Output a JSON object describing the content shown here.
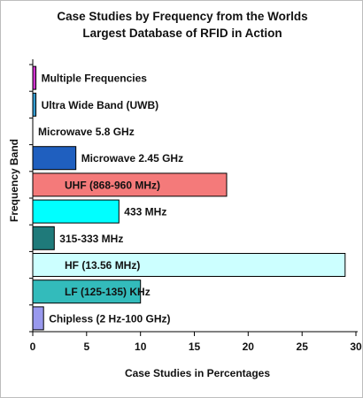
{
  "chart_data": {
    "type": "bar",
    "orientation": "horizontal",
    "title_line1": "Case Studies by Frequency from the Worlds",
    "title_line2": "Largest Database of RFID in Action",
    "xlabel": "Case Studies in Percentages",
    "ylabel": "Frequency Band",
    "xlim": [
      0,
      30
    ],
    "xticks": [
      0,
      5,
      10,
      15,
      20,
      25,
      30
    ],
    "grid": false,
    "legend": "none",
    "categories": [
      "Multiple Frequencies",
      "Ultra Wide Band (UWB)",
      "Microwave 5.8 GHz",
      "Microwave 2.45 GHz",
      "UHF (868-960 MHz)",
      "433 MHz",
      "315-333 MHz",
      "HF (13.56 MHz)",
      "LF (125-135) KHz",
      "Chipless (2 Hz-100 GHz)"
    ],
    "values": [
      0.3,
      0.3,
      0.0,
      4.0,
      18.0,
      8.0,
      2.0,
      29.0,
      10.0,
      1.0
    ],
    "colors": [
      "#cc33cc",
      "#3399cc",
      "#cccccc",
      "#1f5fbf",
      "#f47a7a",
      "#00ffff",
      "#1f7a7a",
      "#ccffff",
      "#33bbbb",
      "#9999ee"
    ]
  }
}
